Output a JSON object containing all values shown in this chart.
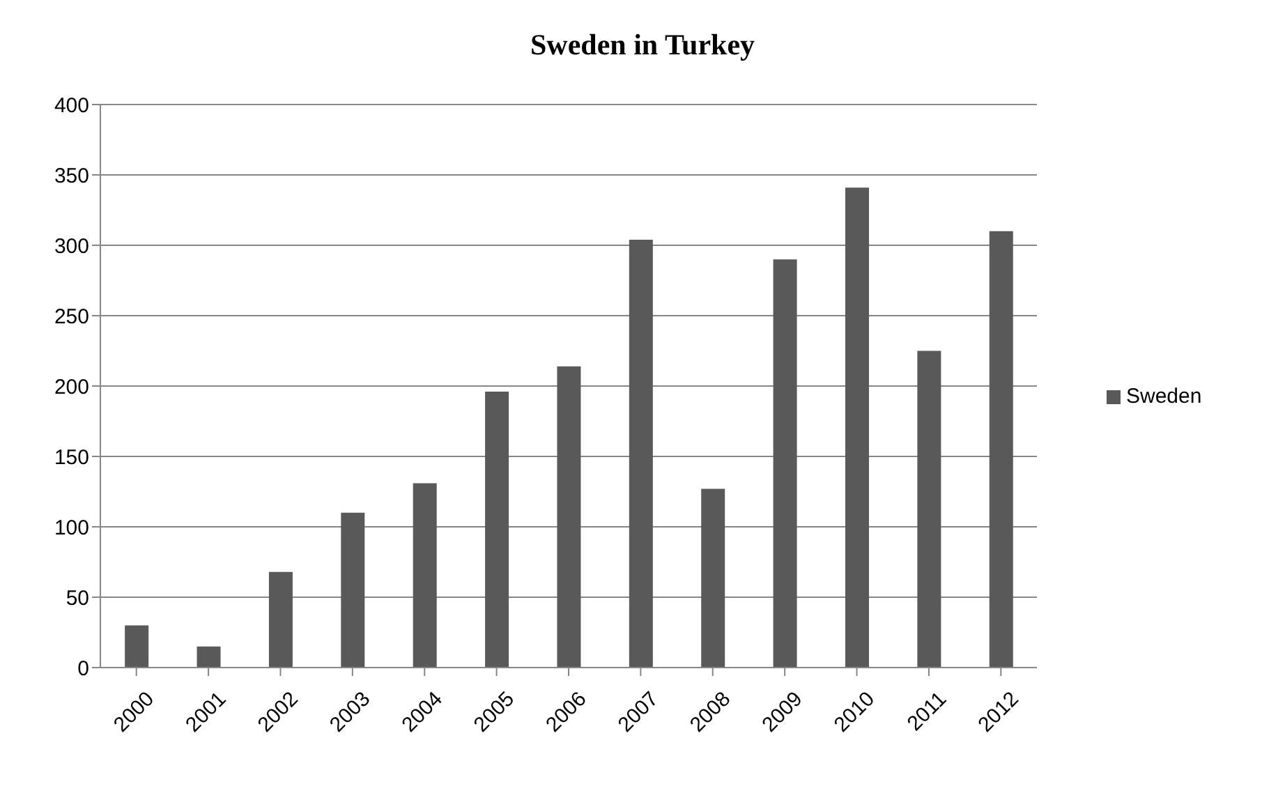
{
  "chart_data": {
    "type": "bar",
    "title": "Sweden in Turkey",
    "categories": [
      "2000",
      "2001",
      "2002",
      "2003",
      "2004",
      "2005",
      "2006",
      "2007",
      "2008",
      "2009",
      "2010",
      "2011",
      "2012"
    ],
    "series": [
      {
        "name": "Sweden",
        "color": "#595959",
        "values": [
          30,
          15,
          68,
          110,
          131,
          196,
          214,
          304,
          127,
          290,
          341,
          225,
          310
        ]
      }
    ],
    "ylim": [
      0,
      400
    ],
    "yticks": [
      0,
      50,
      100,
      150,
      200,
      250,
      300,
      350,
      400
    ],
    "grid": "y",
    "legend": "right"
  }
}
